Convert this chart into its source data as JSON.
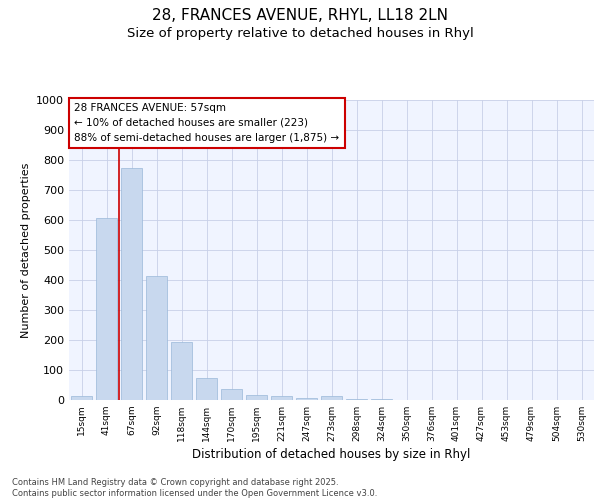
{
  "title_line1": "28, FRANCES AVENUE, RHYL, LL18 2LN",
  "title_line2": "Size of property relative to detached houses in Rhyl",
  "xlabel": "Distribution of detached houses by size in Rhyl",
  "ylabel": "Number of detached properties",
  "categories": [
    "15sqm",
    "41sqm",
    "67sqm",
    "92sqm",
    "118sqm",
    "144sqm",
    "170sqm",
    "195sqm",
    "221sqm",
    "247sqm",
    "273sqm",
    "298sqm",
    "324sqm",
    "350sqm",
    "376sqm",
    "401sqm",
    "427sqm",
    "453sqm",
    "479sqm",
    "504sqm",
    "530sqm"
  ],
  "values": [
    15,
    608,
    773,
    413,
    193,
    75,
    38,
    17,
    12,
    8,
    13,
    5,
    2,
    1,
    0,
    0,
    0,
    0,
    0,
    0,
    0
  ],
  "bar_color": "#c8d8ee",
  "bar_edge_color": "#9ab8d8",
  "vline_color": "#cc0000",
  "vline_position": 1.5,
  "ylim": [
    0,
    1000
  ],
  "yticks": [
    0,
    100,
    200,
    300,
    400,
    500,
    600,
    700,
    800,
    900,
    1000
  ],
  "annotation_line1": "28 FRANCES AVENUE: 57sqm",
  "annotation_line2": "← 10% of detached houses are smaller (223)",
  "annotation_line3": "88% of semi-detached houses are larger (1,875) →",
  "ann_box_edge_color": "#cc0000",
  "footnote": "Contains HM Land Registry data © Crown copyright and database right 2025.\nContains public sector information licensed under the Open Government Licence v3.0.",
  "bg_color": "#f0f4ff",
  "grid_color": "#c8d0e8",
  "fig_bg": "#ffffff"
}
